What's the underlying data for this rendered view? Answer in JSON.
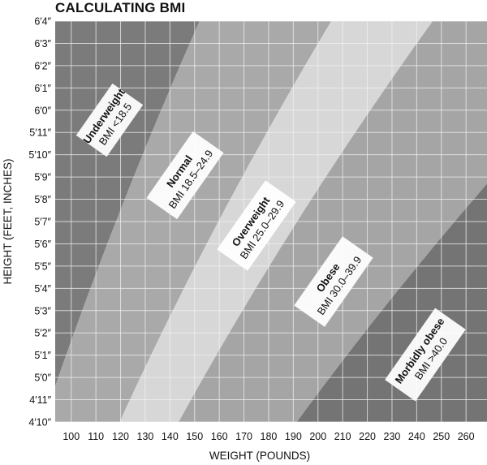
{
  "title": "CALCULATING BMI",
  "chart_data": {
    "type": "area",
    "title": "CALCULATING BMI",
    "xlabel": "WEIGHT (POUNDS)",
    "ylabel": "HEIGHT (FEET, INCHES)",
    "xlim": [
      93.5,
      268.5
    ],
    "ylim": [
      58,
      76
    ],
    "grid": true,
    "x_ticks": [
      100,
      110,
      120,
      130,
      140,
      150,
      160,
      170,
      180,
      190,
      200,
      210,
      220,
      230,
      240,
      250,
      260
    ],
    "y_ticks": [
      {
        "value": 58,
        "label": "4′10″"
      },
      {
        "value": 59,
        "label": "4′11″"
      },
      {
        "value": 60,
        "label": "5′0″"
      },
      {
        "value": 61,
        "label": "5′1″"
      },
      {
        "value": 62,
        "label": "5′2″"
      },
      {
        "value": 63,
        "label": "5′3″"
      },
      {
        "value": 64,
        "label": "5′4″"
      },
      {
        "value": 65,
        "label": "5′5″"
      },
      {
        "value": 66,
        "label": "5′6″"
      },
      {
        "value": 67,
        "label": "5′7″"
      },
      {
        "value": 68,
        "label": "5′8″"
      },
      {
        "value": 69,
        "label": "5′9″"
      },
      {
        "value": 70,
        "label": "5′10″"
      },
      {
        "value": 71,
        "label": "5′11″"
      },
      {
        "value": 72,
        "label": "6′0″"
      },
      {
        "value": 73,
        "label": "6′1″"
      },
      {
        "value": 74,
        "label": "6′2″"
      },
      {
        "value": 75,
        "label": "6′3″"
      },
      {
        "value": 76,
        "label": "6′4″"
      }
    ],
    "series": [
      {
        "name": "Underweight",
        "range": "BMI <18.5",
        "bmi_min": 0,
        "bmi_max": 18.5,
        "color": "#7b7b7b"
      },
      {
        "name": "Normal",
        "range": "BMI 18.5–24.9",
        "bmi_min": 18.5,
        "bmi_max": 25.0,
        "color": "#a9a9a9"
      },
      {
        "name": "Overweight",
        "range": "BMI 25.0–29.9",
        "bmi_min": 25.0,
        "bmi_max": 30.0,
        "color": "#d7d7d7"
      },
      {
        "name": "Obese",
        "range": "BMI 30.0–39.9",
        "bmi_min": 30.0,
        "bmi_max": 40.0,
        "color": "#a5a5a5"
      },
      {
        "name": "Morbidly obese",
        "range": "BMI >40.0",
        "bmi_min": 40.0,
        "bmi_max": 1000,
        "color": "#747474"
      }
    ]
  }
}
